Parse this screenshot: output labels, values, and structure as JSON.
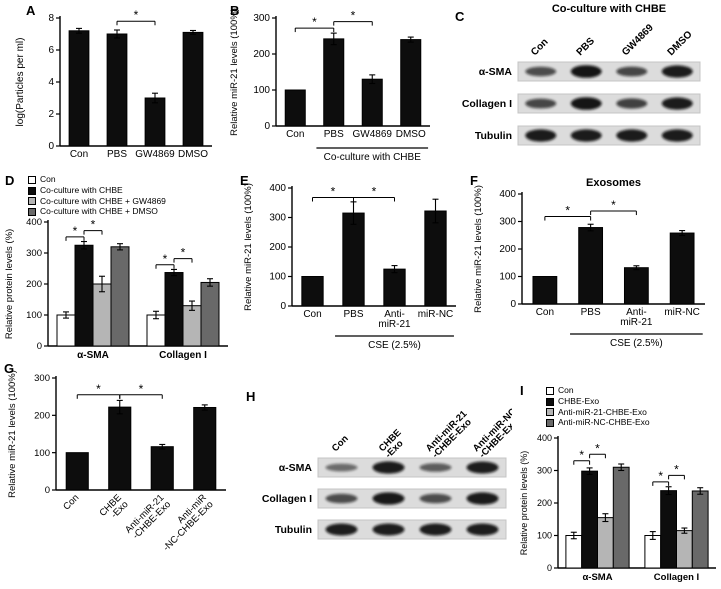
{
  "panels": {
    "A": "A",
    "B": "B",
    "C": "C",
    "D": "D",
    "E": "E",
    "F": "F",
    "G": "G",
    "H": "H",
    "I": "I"
  },
  "colors": {
    "white": "#ffffff",
    "black": "#0d0d0d",
    "light_gray": "#b5b5b5",
    "dark_gray": "#696969"
  },
  "chart_data": [
    {
      "id": "A",
      "type": "bar",
      "title": "",
      "ylabel": "log(Particles per ml)",
      "ylim": [
        0,
        8
      ],
      "yticks": [
        0,
        2,
        4,
        6,
        8
      ],
      "categories": [
        "Con",
        "PBS",
        "GW4869",
        "DMSO"
      ],
      "values": [
        7.2,
        7.0,
        3.0,
        7.1
      ],
      "errors": [
        0.15,
        0.25,
        0.3,
        0.12
      ],
      "bar_color": "black",
      "sig": [
        {
          "from": 1,
          "to": 2,
          "label": "*",
          "y": 7.8
        }
      ]
    },
    {
      "id": "B",
      "type": "bar",
      "title": "",
      "ylabel": "Relative miR-21 levels (100%)",
      "ylim": [
        0,
        300
      ],
      "yticks": [
        0,
        100,
        200,
        300
      ],
      "categories": [
        "Con",
        "PBS",
        "GW4869",
        "DMSO"
      ],
      "values": [
        100,
        242,
        130,
        240
      ],
      "errors": [
        0,
        16,
        12,
        7
      ],
      "bar_color": "black",
      "sig": [
        {
          "from": 0,
          "to": 1,
          "label": "*",
          "y": 272
        },
        {
          "from": 1,
          "to": 2,
          "label": "*",
          "y": 290
        }
      ],
      "xgroup": {
        "from": 1,
        "to": 3,
        "label": "Co-culture with CHBE"
      }
    },
    {
      "id": "D",
      "type": "grouped_bar",
      "title": "",
      "ylabel": "Relative protein levels (%)",
      "ylim": [
        0,
        400
      ],
      "yticks": [
        0,
        100,
        200,
        300,
        400
      ],
      "categories": [
        "α-SMA",
        "Collagen I"
      ],
      "series": [
        {
          "name": "Con",
          "color": "white",
          "values": [
            100,
            100
          ],
          "errors": [
            10,
            12
          ]
        },
        {
          "name": "Co-culture with CHBE",
          "color": "black",
          "values": [
            325,
            237
          ],
          "errors": [
            12,
            10
          ]
        },
        {
          "name": "Co-culture with CHBE + GW4869",
          "color": "light_gray",
          "values": [
            200,
            130
          ],
          "errors": [
            25,
            15
          ]
        },
        {
          "name": "Co-culture with CHBE + DMSO",
          "color": "dark_gray",
          "values": [
            320,
            205
          ],
          "errors": [
            10,
            12
          ]
        }
      ],
      "sig": [
        {
          "group": 0,
          "from": 0,
          "to": 1,
          "label": "*",
          "y": 352
        },
        {
          "group": 0,
          "from": 1,
          "to": 2,
          "label": "*",
          "y": 372
        },
        {
          "group": 1,
          "from": 0,
          "to": 1,
          "label": "*",
          "y": 262
        },
        {
          "group": 1,
          "from": 1,
          "to": 2,
          "label": "*",
          "y": 282
        }
      ],
      "legend": true
    },
    {
      "id": "E",
      "type": "bar",
      "title": "",
      "ylabel": "Relative miR-21 levels (100%)",
      "ylim": [
        0,
        400
      ],
      "yticks": [
        0,
        100,
        200,
        300,
        400
      ],
      "categories": [
        "Con",
        "PBS",
        [
          "Anti-",
          "miR-21"
        ],
        [
          "miR-NC"
        ]
      ],
      "values": [
        100,
        315,
        125,
        322
      ],
      "errors": [
        0,
        38,
        12,
        40
      ],
      "bar_color": "black",
      "sig": [
        {
          "from": 0,
          "to": 1,
          "label": "*",
          "y": 368
        },
        {
          "from": 1,
          "to": 2,
          "label": "*",
          "y": 368
        }
      ],
      "xgroup": {
        "from": 1,
        "to": 3,
        "label": "CSE (2.5%)"
      }
    },
    {
      "id": "F",
      "type": "bar",
      "title": "Exosomes",
      "ylabel": "Relative miR-21 levels (100%)",
      "ylim": [
        0,
        400
      ],
      "yticks": [
        0,
        100,
        200,
        300,
        400
      ],
      "categories": [
        "Con",
        "PBS",
        [
          "Anti-",
          "miR-21"
        ],
        [
          "miR-NC"
        ]
      ],
      "values": [
        100,
        278,
        132,
        258
      ],
      "errors": [
        0,
        12,
        7,
        9
      ],
      "bar_color": "black",
      "sig": [
        {
          "from": 0,
          "to": 1,
          "label": "*",
          "y": 318
        },
        {
          "from": 1,
          "to": 2,
          "label": "*",
          "y": 338
        }
      ],
      "xgroup": {
        "from": 1,
        "to": 3,
        "label": "CSE (2.5%)"
      }
    },
    {
      "id": "G",
      "type": "bar",
      "title": "",
      "ylabel": "Relative miR-21 levels (100%)",
      "ylim": [
        0,
        300
      ],
      "yticks": [
        0,
        100,
        200,
        300
      ],
      "categories": [
        [
          "Con"
        ],
        [
          "CHBE",
          "-Exo"
        ],
        [
          "Anti-miR-21",
          "-CHBE-Exo"
        ],
        [
          "Anti-miR",
          "-NC-CHBE-Exo"
        ]
      ],
      "values": [
        100,
        222,
        116,
        221
      ],
      "errors": [
        0,
        18,
        6,
        7
      ],
      "bar_color": "black",
      "xrotate": true,
      "sig": [
        {
          "from": 0,
          "to": 1,
          "label": "*",
          "y": 255
        },
        {
          "from": 1,
          "to": 2,
          "label": "*",
          "y": 255
        }
      ]
    },
    {
      "id": "I",
      "type": "grouped_bar",
      "title": "",
      "ylabel": "Relative protein levels (%)",
      "ylim": [
        0,
        400
      ],
      "yticks": [
        0,
        100,
        200,
        300,
        400
      ],
      "categories": [
        "α-SMA",
        "Collagen I"
      ],
      "series": [
        {
          "name": "Con",
          "color": "white",
          "values": [
            100,
            100
          ],
          "errors": [
            10,
            12
          ]
        },
        {
          "name": "CHBE-Exo",
          "color": "black",
          "values": [
            298,
            238
          ],
          "errors": [
            10,
            12
          ]
        },
        {
          "name": "Anti-miR-21-CHBE-Exo",
          "color": "light_gray",
          "values": [
            155,
            115
          ],
          "errors": [
            12,
            8
          ]
        },
        {
          "name": "Anti-miR-NC-CHBE-Exo",
          "color": "dark_gray",
          "values": [
            310,
            237
          ],
          "errors": [
            10,
            10
          ]
        }
      ],
      "sig": [
        {
          "group": 0,
          "from": 0,
          "to": 1,
          "label": "*",
          "y": 330
        },
        {
          "group": 0,
          "from": 1,
          "to": 2,
          "label": "*",
          "y": 350
        },
        {
          "group": 1,
          "from": 0,
          "to": 1,
          "label": "*",
          "y": 265
        },
        {
          "group": 1,
          "from": 1,
          "to": 2,
          "label": "*",
          "y": 285
        }
      ],
      "legend": true
    }
  ],
  "blots": [
    {
      "id": "C",
      "title": "Co-culture with CHBE",
      "lanes": [
        [
          "Con"
        ],
        [
          "PBS"
        ],
        [
          "GW4869"
        ],
        [
          "DMSO"
        ]
      ],
      "rows": [
        {
          "label": "α-SMA",
          "bands": [
            0.55,
            0.95,
            0.6,
            0.9
          ]
        },
        {
          "label": "Collagen I",
          "bands": [
            0.6,
            0.95,
            0.65,
            0.9
          ]
        },
        {
          "label": "Tubulin",
          "bands": [
            0.9,
            0.9,
            0.9,
            0.9
          ]
        }
      ]
    },
    {
      "id": "H",
      "title": "",
      "lanes": [
        [
          "Con"
        ],
        [
          "CHBE",
          "-Exo"
        ],
        [
          "Anti-miR-21",
          "-CHBE-Exo"
        ],
        [
          "Anti-miR-NC",
          "-CHBE-Exo"
        ]
      ],
      "rows": [
        {
          "label": "α-SMA",
          "bands": [
            0.35,
            0.9,
            0.45,
            0.88
          ]
        },
        {
          "label": "Collagen I",
          "bands": [
            0.55,
            0.92,
            0.55,
            0.9
          ]
        },
        {
          "label": "Tubulin",
          "bands": [
            0.88,
            0.88,
            0.88,
            0.88
          ]
        }
      ]
    }
  ]
}
